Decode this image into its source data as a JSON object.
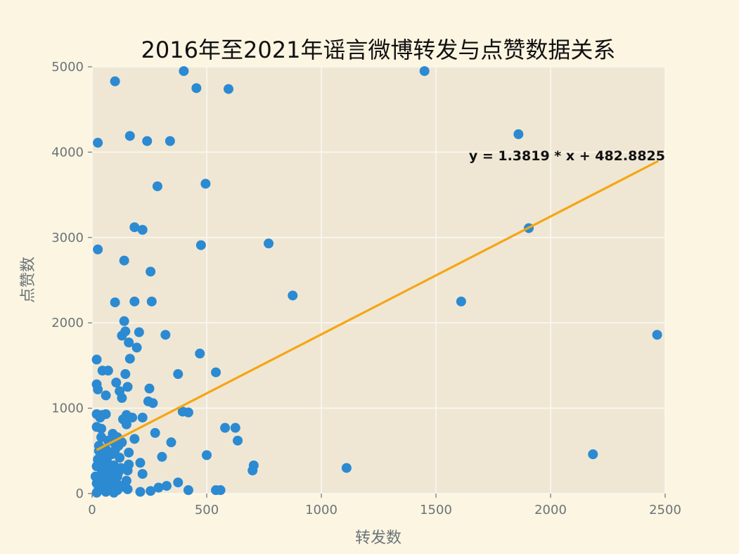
{
  "chart_data": {
    "type": "scatter",
    "title": "2016年至2021年谣言微博转发与点赞数据关系",
    "xlabel": "转发数",
    "ylabel": "点赞数",
    "xlim": [
      0,
      2500
    ],
    "ylim": [
      0,
      5000
    ],
    "xticks": [
      0,
      500,
      1000,
      1500,
      2000,
      2500
    ],
    "yticks": [
      0,
      1000,
      2000,
      3000,
      4000,
      5000
    ],
    "grid": true,
    "colors": {
      "background": "#fcf5e2",
      "plot_background": "#efe7d4",
      "grid": "#fbf8ef",
      "points": "#2b8ad2",
      "fit_line": "#f6a514",
      "tick": "#6a7479"
    },
    "series": [
      {
        "points": [
          [
            400,
            4950
          ],
          [
            1450,
            4950
          ],
          [
            100,
            4830
          ],
          [
            455,
            4750
          ],
          [
            595,
            4740
          ],
          [
            25,
            4110
          ],
          [
            165,
            4190
          ],
          [
            240,
            4130
          ],
          [
            340,
            4130
          ],
          [
            1860,
            4210
          ],
          [
            285,
            3600
          ],
          [
            495,
            3630
          ],
          [
            185,
            3120
          ],
          [
            220,
            3090
          ],
          [
            1905,
            3110
          ],
          [
            25,
            2860
          ],
          [
            475,
            2910
          ],
          [
            770,
            2930
          ],
          [
            140,
            2730
          ],
          [
            255,
            2600
          ],
          [
            875,
            2320
          ],
          [
            100,
            2240
          ],
          [
            185,
            2250
          ],
          [
            260,
            2250
          ],
          [
            1610,
            2250
          ],
          [
            140,
            2020
          ],
          [
            145,
            1900
          ],
          [
            205,
            1890
          ],
          [
            130,
            1850
          ],
          [
            320,
            1860
          ],
          [
            160,
            1770
          ],
          [
            195,
            1710
          ],
          [
            2465,
            1860
          ],
          [
            20,
            1570
          ],
          [
            165,
            1580
          ],
          [
            470,
            1640
          ],
          [
            45,
            1440
          ],
          [
            70,
            1440
          ],
          [
            145,
            1400
          ],
          [
            375,
            1400
          ],
          [
            540,
            1420
          ],
          [
            20,
            1280
          ],
          [
            105,
            1300
          ],
          [
            155,
            1250
          ],
          [
            25,
            1220
          ],
          [
            250,
            1230
          ],
          [
            120,
            1200
          ],
          [
            60,
            1150
          ],
          [
            130,
            1120
          ],
          [
            245,
            1080
          ],
          [
            265,
            1060
          ],
          [
            395,
            960
          ],
          [
            420,
            950
          ],
          [
            20,
            930
          ],
          [
            45,
            920
          ],
          [
            60,
            930
          ],
          [
            150,
            920
          ],
          [
            35,
            890
          ],
          [
            135,
            870
          ],
          [
            175,
            890
          ],
          [
            220,
            890
          ],
          [
            150,
            810
          ],
          [
            580,
            770
          ],
          [
            625,
            770
          ],
          [
            20,
            780
          ],
          [
            40,
            760
          ],
          [
            90,
            700
          ],
          [
            275,
            710
          ],
          [
            110,
            660
          ],
          [
            185,
            640
          ],
          [
            70,
            620
          ],
          [
            130,
            600
          ],
          [
            345,
            600
          ],
          [
            635,
            620
          ],
          [
            30,
            560
          ],
          [
            60,
            520
          ],
          [
            100,
            510
          ],
          [
            160,
            480
          ],
          [
            500,
            450
          ],
          [
            305,
            430
          ],
          [
            2185,
            460
          ],
          [
            55,
            440
          ],
          [
            120,
            420
          ],
          [
            210,
            360
          ],
          [
            160,
            340
          ],
          [
            705,
            330
          ],
          [
            20,
            320
          ],
          [
            80,
            300
          ],
          [
            155,
            270
          ],
          [
            700,
            270
          ],
          [
            1110,
            300
          ],
          [
            40,
            230
          ],
          [
            90,
            220
          ],
          [
            220,
            230
          ],
          [
            110,
            200
          ],
          [
            50,
            170
          ],
          [
            150,
            150
          ],
          [
            20,
            120
          ],
          [
            375,
            130
          ],
          [
            325,
            90
          ],
          [
            70,
            90
          ],
          [
            130,
            80
          ],
          [
            290,
            70
          ],
          [
            30,
            60
          ],
          [
            255,
            30
          ],
          [
            420,
            40
          ],
          [
            540,
            40
          ],
          [
            560,
            40
          ],
          [
            210,
            20
          ],
          [
            60,
            20
          ],
          [
            110,
            40
          ],
          [
            20,
            10
          ],
          [
            95,
            10
          ],
          [
            15,
            200
          ],
          [
            35,
            350
          ],
          [
            55,
            280
          ],
          [
            75,
            180
          ],
          [
            95,
            330
          ],
          [
            115,
            250
          ],
          [
            25,
            400
          ],
          [
            45,
            110
          ],
          [
            85,
            60
          ],
          [
            65,
            380
          ],
          [
            105,
            130
          ],
          [
            125,
            300
          ],
          [
            140,
            100
          ],
          [
            30,
            500
          ],
          [
            85,
            460
          ],
          [
            115,
            560
          ],
          [
            40,
            660
          ],
          [
            95,
            600
          ],
          [
            155,
            50
          ]
        ]
      }
    ],
    "fit": {
      "slope": 1.3819,
      "intercept": 482.8825,
      "x_range": [
        20,
        2470
      ],
      "equation_label": "y = 1.3819 * x + 482.8825"
    }
  }
}
